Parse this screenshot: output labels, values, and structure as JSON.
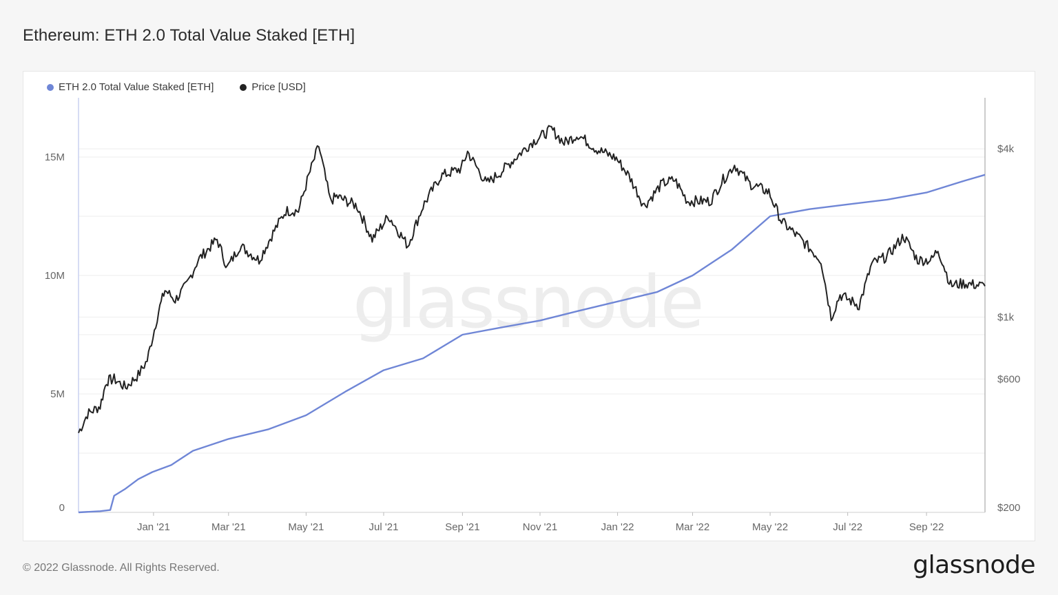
{
  "page": {
    "title": "Ethereum: ETH 2.0 Total Value Staked [ETH]",
    "footer": "© 2022 Glassnode. All Rights Reserved.",
    "brand": "glassnode",
    "watermark": "glassnode"
  },
  "colors": {
    "staked": "#6f86d6",
    "price": "#222222",
    "grid": "#eeeeee",
    "axis_line": "#c8d0f0"
  },
  "chart_data": {
    "type": "line",
    "title": "Ethereum: ETH 2.0 Total Value Staked [ETH]",
    "legend_position": "top-left",
    "grid": true,
    "x_range": [
      "2020-11-03",
      "2022-10-17"
    ],
    "x_ticks": [
      {
        "date": "2021-01-01",
        "label": "Jan '21"
      },
      {
        "date": "2021-03-01",
        "label": "Mar '21"
      },
      {
        "date": "2021-05-01",
        "label": "May '21"
      },
      {
        "date": "2021-07-01",
        "label": "Jul '21"
      },
      {
        "date": "2021-09-01",
        "label": "Sep '21"
      },
      {
        "date": "2021-11-01",
        "label": "Nov '21"
      },
      {
        "date": "2022-01-01",
        "label": "Jan '22"
      },
      {
        "date": "2022-03-01",
        "label": "Mar '22"
      },
      {
        "date": "2022-05-01",
        "label": "May '22"
      },
      {
        "date": "2022-07-01",
        "label": "Jul '22"
      },
      {
        "date": "2022-09-01",
        "label": "Sep '22"
      }
    ],
    "y_left": {
      "scale": "linear",
      "range": [
        0,
        17500000
      ],
      "ticks": [
        {
          "value": 0,
          "label": "0"
        },
        {
          "value": 5000000,
          "label": "5M"
        },
        {
          "value": 10000000,
          "label": "10M"
        },
        {
          "value": 15000000,
          "label": "15M"
        }
      ]
    },
    "y_right": {
      "scale": "log",
      "range": [
        200,
        5500
      ],
      "ticks": [
        {
          "value": 200,
          "label": "$200"
        },
        {
          "value": 600,
          "label": "$600"
        },
        {
          "value": 1000,
          "label": "$1k"
        },
        {
          "value": 4000,
          "label": "$4k"
        }
      ]
    },
    "series": [
      {
        "name": "ETH 2.0 Total Value Staked [ETH]",
        "axis": "left",
        "points": [
          [
            "2020-11-03",
            0
          ],
          [
            "2020-11-20",
            50000
          ],
          [
            "2020-11-28",
            100000
          ],
          [
            "2020-12-01",
            700000
          ],
          [
            "2020-12-10",
            1000000
          ],
          [
            "2020-12-20",
            1400000
          ],
          [
            "2020-12-31",
            1700000
          ],
          [
            "2021-01-15",
            2000000
          ],
          [
            "2021-02-01",
            2600000
          ],
          [
            "2021-03-01",
            3100000
          ],
          [
            "2021-04-01",
            3500000
          ],
          [
            "2021-05-01",
            4100000
          ],
          [
            "2021-06-01",
            5100000
          ],
          [
            "2021-07-01",
            6000000
          ],
          [
            "2021-08-01",
            6500000
          ],
          [
            "2021-09-01",
            7500000
          ],
          [
            "2021-10-01",
            7800000
          ],
          [
            "2021-11-01",
            8100000
          ],
          [
            "2021-12-01",
            8500000
          ],
          [
            "2022-01-01",
            8900000
          ],
          [
            "2022-02-01",
            9300000
          ],
          [
            "2022-03-01",
            10000000
          ],
          [
            "2022-04-01",
            11100000
          ],
          [
            "2022-05-01",
            12500000
          ],
          [
            "2022-06-01",
            12800000
          ],
          [
            "2022-07-01",
            13000000
          ],
          [
            "2022-08-01",
            13200000
          ],
          [
            "2022-09-01",
            13500000
          ],
          [
            "2022-10-01",
            14000000
          ],
          [
            "2022-10-17",
            14250000
          ]
        ]
      },
      {
        "name": "Price [USD]",
        "axis": "right",
        "points": [
          [
            "2020-11-03",
            385
          ],
          [
            "2020-11-10",
            450
          ],
          [
            "2020-11-20",
            480
          ],
          [
            "2020-11-25",
            590
          ],
          [
            "2020-12-01",
            600
          ],
          [
            "2020-12-10",
            560
          ],
          [
            "2020-12-20",
            620
          ],
          [
            "2020-12-27",
            700
          ],
          [
            "2021-01-05",
            1050
          ],
          [
            "2021-01-10",
            1250
          ],
          [
            "2021-01-18",
            1150
          ],
          [
            "2021-01-27",
            1300
          ],
          [
            "2021-02-05",
            1600
          ],
          [
            "2021-02-20",
            1900
          ],
          [
            "2021-02-28",
            1500
          ],
          [
            "2021-03-10",
            1800
          ],
          [
            "2021-03-25",
            1600
          ],
          [
            "2021-04-05",
            2000
          ],
          [
            "2021-04-15",
            2400
          ],
          [
            "2021-04-25",
            2400
          ],
          [
            "2021-05-03",
            3200
          ],
          [
            "2021-05-11",
            4100
          ],
          [
            "2021-05-20",
            2600
          ],
          [
            "2021-05-25",
            2700
          ],
          [
            "2021-06-10",
            2500
          ],
          [
            "2021-06-22",
            1900
          ],
          [
            "2021-07-05",
            2300
          ],
          [
            "2021-07-20",
            1800
          ],
          [
            "2021-08-01",
            2500
          ],
          [
            "2021-08-15",
            3200
          ],
          [
            "2021-08-31",
            3400
          ],
          [
            "2021-09-05",
            3900
          ],
          [
            "2021-09-20",
            3000
          ],
          [
            "2021-10-01",
            3300
          ],
          [
            "2021-10-15",
            3800
          ],
          [
            "2021-10-25",
            4200
          ],
          [
            "2021-11-10",
            4700
          ],
          [
            "2021-11-20",
            4200
          ],
          [
            "2021-12-01",
            4500
          ],
          [
            "2021-12-15",
            4000
          ],
          [
            "2021-12-31",
            3700
          ],
          [
            "2022-01-10",
            3200
          ],
          [
            "2022-01-22",
            2500
          ],
          [
            "2022-02-05",
            3000
          ],
          [
            "2022-02-15",
            3100
          ],
          [
            "2022-02-25",
            2600
          ],
          [
            "2022-03-15",
            2600
          ],
          [
            "2022-03-25",
            3100
          ],
          [
            "2022-04-03",
            3500
          ],
          [
            "2022-04-15",
            3000
          ],
          [
            "2022-04-30",
            2800
          ],
          [
            "2022-05-10",
            2200
          ],
          [
            "2022-05-25",
            1900
          ],
          [
            "2022-06-10",
            1600
          ],
          [
            "2022-06-18",
            1000
          ],
          [
            "2022-06-25",
            1200
          ],
          [
            "2022-07-10",
            1100
          ],
          [
            "2022-07-20",
            1550
          ],
          [
            "2022-08-01",
            1650
          ],
          [
            "2022-08-14",
            1950
          ],
          [
            "2022-08-25",
            1600
          ],
          [
            "2022-09-05",
            1600
          ],
          [
            "2022-09-10",
            1750
          ],
          [
            "2022-09-20",
            1300
          ],
          [
            "2022-10-01",
            1320
          ],
          [
            "2022-10-17",
            1290
          ]
        ]
      }
    ]
  }
}
